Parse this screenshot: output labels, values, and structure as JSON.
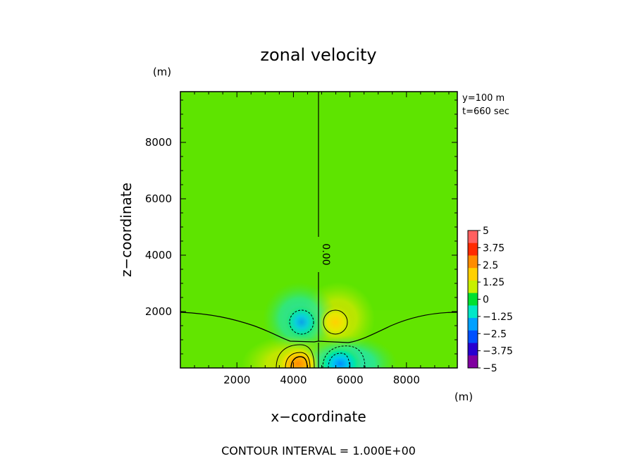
{
  "chart_data": {
    "type": "heatmap",
    "title": "zonal velocity",
    "xlabel": "x−coordinate",
    "ylabel": "z−coordinate",
    "x_unit": "(m)",
    "y_unit": "(m)",
    "xlim": [
      0,
      9800
    ],
    "ylim": [
      0,
      9800
    ],
    "x_ticks": [
      "2000",
      "4000",
      "6000",
      "8000"
    ],
    "y_ticks": [
      "2000",
      "4000",
      "6000",
      "8000"
    ],
    "x_tick_values": [
      2000,
      4000,
      6000,
      8000
    ],
    "y_tick_values": [
      2000,
      4000,
      6000,
      8000
    ],
    "info_lines": [
      "y=100  m",
      "t=660  sec"
    ],
    "footer": "CONTOUR INTERVAL = 1.000E+00",
    "contour_label": "0.00",
    "background_value": 0.8,
    "grid": false,
    "colorbar": {
      "labels": [
        "5",
        "3.75",
        "2.5",
        "1.25",
        "0",
        "−1.25",
        "−2.5",
        "−3.75",
        "−5"
      ],
      "values": [
        5,
        3.75,
        2.5,
        1.25,
        0,
        -1.25,
        -2.5,
        -3.75,
        -5
      ],
      "colors": [
        "#ff6060",
        "#ff2a00",
        "#ff8c00",
        "#ffd000",
        "#c8f000",
        "#00e030",
        "#00e8c8",
        "#00a0ff",
        "#0050ff",
        "#2800d0",
        "#8000a0"
      ]
    },
    "anomalies": [
      {
        "x": 4450,
        "z": 300,
        "value": 3.2
      },
      {
        "x": 5700,
        "z": 1700,
        "value": 2.2
      },
      {
        "x": 5650,
        "z": 300,
        "value": -2.4
      },
      {
        "x": 4300,
        "z": 1700,
        "value": -1.6
      }
    ]
  }
}
